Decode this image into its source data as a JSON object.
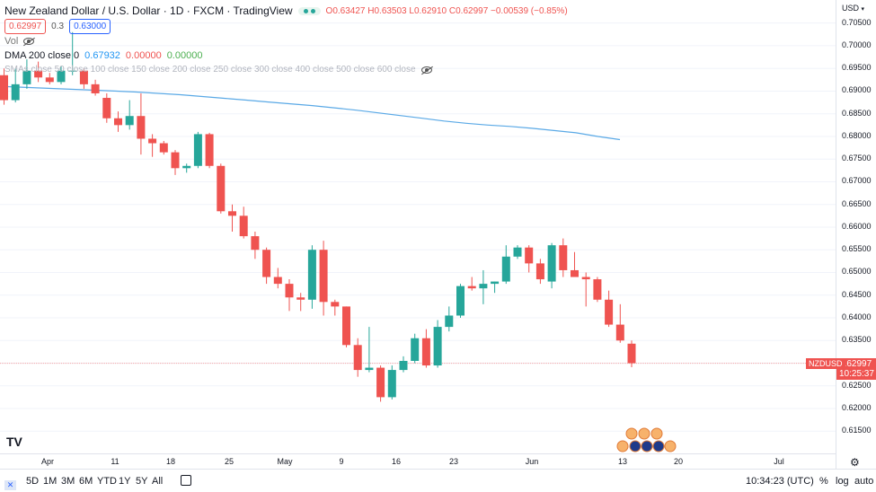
{
  "header": {
    "symbol_title": "New Zealand Dollar / U.S. Dollar · 1D · FXCM · TradingView",
    "ohlc": "O0.63427 H0.63503 L0.62910 C0.62997 −0.00539 (−0.85%)",
    "bid": "0.62997",
    "spread": "0.3",
    "ask": "0.63000"
  },
  "indicators": {
    "vol_label": "Vol",
    "dma_label": "DMA 200 close 0",
    "dma_value": "0.67932",
    "dma_v2": "0.00000",
    "dma_v3": "0.00000",
    "sma_label": "SMAs close 50 close 100 close 150 close 200 close 250 close 300 close 400 close 500 close 600 close"
  },
  "price_axis": {
    "currency": "USD",
    "ticks": [
      "0.70500",
      "0.70000",
      "0.69500",
      "0.69000",
      "0.68500",
      "0.68000",
      "0.67500",
      "0.67000",
      "0.66500",
      "0.66000",
      "0.65500",
      "0.65000",
      "0.64500",
      "0.64000",
      "0.63500",
      "0.63000",
      "0.62500",
      "0.62000",
      "0.61500"
    ],
    "symbol_badge": "NZDUSD",
    "last_price": "0.62997",
    "countdown": "10:25:37"
  },
  "time_axis": {
    "labels": [
      "Apr",
      "11",
      "18",
      "25",
      "May",
      "9",
      "16",
      "23",
      "Jun",
      "13",
      "20",
      "Jul"
    ]
  },
  "bottom_bar": {
    "ranges": [
      "5D",
      "1M",
      "3M",
      "6M",
      "YTD",
      "1Y",
      "5Y",
      "All"
    ],
    "clock": "10:34:23 (UTC)",
    "percent": "%",
    "log": "log",
    "auto": "auto"
  },
  "colors": {
    "up": "#26a69a",
    "down": "#ef5350",
    "ma": "#5aa9e6",
    "last_line": "#f7a5a5"
  },
  "chart_data": {
    "type": "candlestick",
    "y_range": [
      0.6105,
      0.7085
    ],
    "candles": [
      {
        "o": 0.6935,
        "h": 0.695,
        "l": 0.687,
        "c": 0.688
      },
      {
        "o": 0.688,
        "h": 0.695,
        "l": 0.6875,
        "c": 0.6915
      },
      {
        "o": 0.6915,
        "h": 0.697,
        "l": 0.6905,
        "c": 0.6945
      },
      {
        "o": 0.6945,
        "h": 0.6965,
        "l": 0.692,
        "c": 0.693
      },
      {
        "o": 0.693,
        "h": 0.694,
        "l": 0.6915,
        "c": 0.692
      },
      {
        "o": 0.692,
        "h": 0.6955,
        "l": 0.6915,
        "c": 0.6945
      },
      {
        "o": 0.6945,
        "h": 0.703,
        "l": 0.6935,
        "c": 0.6945
      },
      {
        "o": 0.6945,
        "h": 0.695,
        "l": 0.6905,
        "c": 0.6915
      },
      {
        "o": 0.6915,
        "h": 0.6925,
        "l": 0.689,
        "c": 0.6895
      },
      {
        "o": 0.6885,
        "h": 0.6895,
        "l": 0.683,
        "c": 0.684
      },
      {
        "o": 0.684,
        "h": 0.6855,
        "l": 0.681,
        "c": 0.6825
      },
      {
        "o": 0.6825,
        "h": 0.688,
        "l": 0.6815,
        "c": 0.6845
      },
      {
        "o": 0.6845,
        "h": 0.6895,
        "l": 0.676,
        "c": 0.6795
      },
      {
        "o": 0.6795,
        "h": 0.6805,
        "l": 0.6755,
        "c": 0.6785
      },
      {
        "o": 0.6785,
        "h": 0.679,
        "l": 0.676,
        "c": 0.6765
      },
      {
        "o": 0.6765,
        "h": 0.677,
        "l": 0.6715,
        "c": 0.673
      },
      {
        "o": 0.673,
        "h": 0.674,
        "l": 0.672,
        "c": 0.6735
      },
      {
        "o": 0.6735,
        "h": 0.681,
        "l": 0.673,
        "c": 0.6805
      },
      {
        "o": 0.6805,
        "h": 0.6808,
        "l": 0.673,
        "c": 0.6735
      },
      {
        "o": 0.6735,
        "h": 0.674,
        "l": 0.663,
        "c": 0.6635
      },
      {
        "o": 0.6635,
        "h": 0.665,
        "l": 0.659,
        "c": 0.6625
      },
      {
        "o": 0.6625,
        "h": 0.6645,
        "l": 0.6575,
        "c": 0.658
      },
      {
        "o": 0.658,
        "h": 0.659,
        "l": 0.653,
        "c": 0.655
      },
      {
        "o": 0.655,
        "h": 0.6555,
        "l": 0.6475,
        "c": 0.649
      },
      {
        "o": 0.649,
        "h": 0.651,
        "l": 0.6465,
        "c": 0.6475
      },
      {
        "o": 0.6475,
        "h": 0.6485,
        "l": 0.6415,
        "c": 0.6445
      },
      {
        "o": 0.6445,
        "h": 0.6455,
        "l": 0.6415,
        "c": 0.644
      },
      {
        "o": 0.644,
        "h": 0.656,
        "l": 0.642,
        "c": 0.655
      },
      {
        "o": 0.655,
        "h": 0.657,
        "l": 0.6405,
        "c": 0.6435
      },
      {
        "o": 0.6435,
        "h": 0.644,
        "l": 0.6405,
        "c": 0.6425
      },
      {
        "o": 0.6425,
        "h": 0.6425,
        "l": 0.6335,
        "c": 0.634
      },
      {
        "o": 0.634,
        "h": 0.6355,
        "l": 0.627,
        "c": 0.6285
      },
      {
        "o": 0.6285,
        "h": 0.638,
        "l": 0.628,
        "c": 0.629
      },
      {
        "o": 0.629,
        "h": 0.6295,
        "l": 0.6215,
        "c": 0.6225
      },
      {
        "o": 0.6225,
        "h": 0.6295,
        "l": 0.622,
        "c": 0.6285
      },
      {
        "o": 0.6285,
        "h": 0.6315,
        "l": 0.628,
        "c": 0.6305
      },
      {
        "o": 0.6305,
        "h": 0.6365,
        "l": 0.63,
        "c": 0.6355
      },
      {
        "o": 0.6355,
        "h": 0.6375,
        "l": 0.629,
        "c": 0.6295
      },
      {
        "o": 0.6295,
        "h": 0.6395,
        "l": 0.629,
        "c": 0.638
      },
      {
        "o": 0.638,
        "h": 0.6425,
        "l": 0.637,
        "c": 0.6405
      },
      {
        "o": 0.6405,
        "h": 0.6475,
        "l": 0.64,
        "c": 0.647
      },
      {
        "o": 0.647,
        "h": 0.649,
        "l": 0.646,
        "c": 0.6465
      },
      {
        "o": 0.6465,
        "h": 0.6505,
        "l": 0.643,
        "c": 0.6475
      },
      {
        "o": 0.6475,
        "h": 0.648,
        "l": 0.6455,
        "c": 0.648
      },
      {
        "o": 0.648,
        "h": 0.656,
        "l": 0.6475,
        "c": 0.6535
      },
      {
        "o": 0.6535,
        "h": 0.656,
        "l": 0.653,
        "c": 0.6555
      },
      {
        "o": 0.6555,
        "h": 0.656,
        "l": 0.65,
        "c": 0.652
      },
      {
        "o": 0.652,
        "h": 0.653,
        "l": 0.6475,
        "c": 0.6485
      },
      {
        "o": 0.648,
        "h": 0.6565,
        "l": 0.6465,
        "c": 0.656
      },
      {
        "o": 0.656,
        "h": 0.6575,
        "l": 0.649,
        "c": 0.6505
      },
      {
        "o": 0.6505,
        "h": 0.6545,
        "l": 0.649,
        "c": 0.649
      },
      {
        "o": 0.649,
        "h": 0.65,
        "l": 0.6425,
        "c": 0.6485
      },
      {
        "o": 0.6485,
        "h": 0.649,
        "l": 0.6435,
        "c": 0.644
      },
      {
        "o": 0.644,
        "h": 0.646,
        "l": 0.638,
        "c": 0.6385
      },
      {
        "o": 0.6385,
        "h": 0.643,
        "l": 0.6345,
        "c": 0.635
      },
      {
        "o": 0.6343,
        "h": 0.635,
        "l": 0.6291,
        "c": 0.63
      }
    ],
    "ma_points": [
      0.691,
      0.6908,
      0.6906,
      0.6904,
      0.6902,
      0.69,
      0.6898,
      0.6895,
      0.6892,
      0.6888,
      0.6884,
      0.688,
      0.6876,
      0.6872,
      0.6868,
      0.6863,
      0.6858,
      0.6852,
      0.6846,
      0.684,
      0.6834,
      0.6829,
      0.6825,
      0.6822,
      0.6818,
      0.6813,
      0.6808,
      0.68,
      0.6793
    ],
    "last_price": 0.62997
  }
}
